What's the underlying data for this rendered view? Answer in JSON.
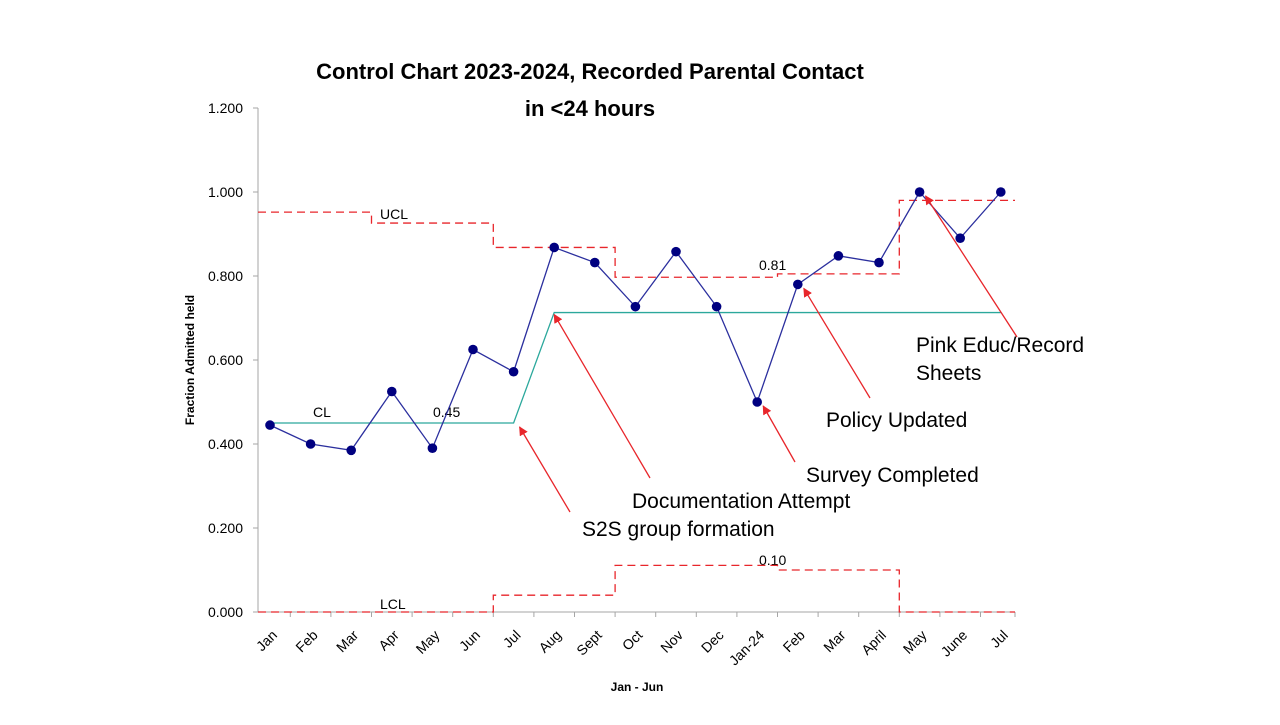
{
  "chart_data": {
    "type": "line",
    "title_line1": "Control Chart 2023-2024, Recorded Parental Contact",
    "title_line2": "in <24 hours",
    "xlabel": "Jan - Jun",
    "ylabel": "Fraction Admitted held",
    "ylim": [
      0,
      1.2
    ],
    "yticks": [
      "0.000",
      "0.200",
      "0.400",
      "0.600",
      "0.800",
      "1.000",
      "1.200"
    ],
    "ytick_values": [
      0,
      0.2,
      0.4,
      0.6,
      0.8,
      1.0,
      1.2
    ],
    "grid": false,
    "categories": [
      "Jan",
      "Feb",
      "Mar",
      "Apr",
      "May",
      "Jun",
      "Jul",
      "Aug",
      "Sept",
      "Oct",
      "Nov",
      "Dec",
      "Jan-24",
      "Feb",
      "Mar",
      "April",
      "May",
      "June",
      "Jul"
    ],
    "series": [
      {
        "role": "data",
        "color": "#2b2f9e",
        "marker_color": "#000080",
        "values": [
          0.445,
          0.4,
          0.385,
          0.525,
          0.39,
          0.625,
          0.572,
          0.868,
          0.832,
          0.727,
          0.858,
          0.727,
          0.5,
          0.78,
          0.848,
          0.832,
          1.0,
          0.89,
          1.0
        ]
      },
      {
        "role": "CL",
        "color": "#2ba89c",
        "values": [
          0.45,
          0.45,
          0.45,
          0.45,
          0.45,
          0.45,
          0.45,
          0.713,
          0.713,
          0.713,
          0.713,
          0.713,
          0.713,
          0.713,
          0.713,
          0.713,
          0.713,
          0.713,
          0.713
        ]
      },
      {
        "role": "UCL",
        "color": "#e8262b",
        "values": [
          0.952,
          0.952,
          0.952,
          0.926,
          0.926,
          0.926,
          0.868,
          0.868,
          0.868,
          0.797,
          0.797,
          0.797,
          0.797,
          0.805,
          0.805,
          0.805,
          0.98,
          0.98,
          0.98
        ]
      },
      {
        "role": "LCL",
        "color": "#e8262b",
        "values": [
          0,
          0,
          0,
          0,
          0,
          0,
          0.04,
          0.04,
          0.04,
          0.111,
          0.111,
          0.111,
          0.111,
          0.1,
          0.1,
          0.1,
          0,
          0,
          0
        ]
      }
    ],
    "line_labels": {
      "ucl": "UCL",
      "ucl_value": "0.81",
      "cl": "CL",
      "cl_value": "0.45",
      "lcl": "LCL",
      "lcl_value": "0.10"
    },
    "annotations": [
      {
        "text_lines": [
          "S2S group formation"
        ],
        "target_index": 6,
        "target_value": 0.45
      },
      {
        "text_lines": [
          "Documentation Attempt"
        ],
        "target_index": 7,
        "target_value": 0.713
      },
      {
        "text_lines": [
          "Survey Completed"
        ],
        "target_index": 12,
        "target_value": 0.5
      },
      {
        "text_lines": [
          "Policy Updated"
        ],
        "target_index": 13,
        "target_value": 0.78
      },
      {
        "text_lines": [
          "Pink Educ/Record",
          "Sheets"
        ],
        "target_index": 16,
        "target_value": 1.0
      }
    ],
    "arrow_color": "#e8262b"
  }
}
